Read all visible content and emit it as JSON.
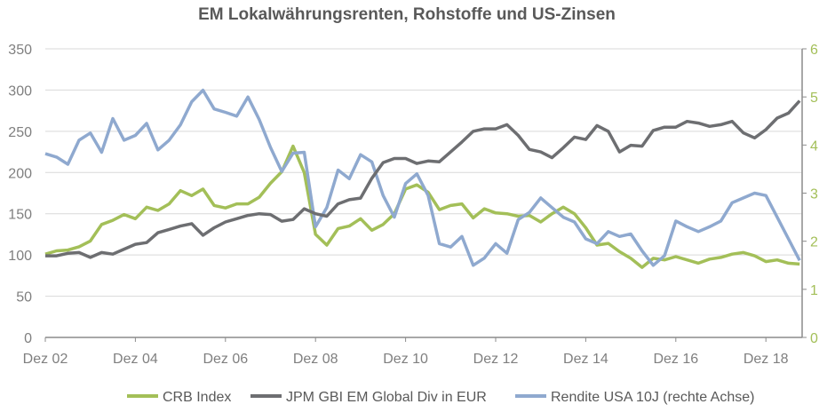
{
  "chart_data": {
    "type": "line",
    "title": "EM Lokalwährungsrenten, Rohstoffe und US-Zinsen",
    "xlabel": "",
    "ylabel": "",
    "ylim": [
      0,
      350
    ],
    "y2lim": [
      0,
      6
    ],
    "yticks": [
      "0",
      "50",
      "100",
      "150",
      "200",
      "250",
      "300",
      "350"
    ],
    "y2ticks": [
      "0",
      "1",
      "2",
      "3",
      "4",
      "5",
      "6"
    ],
    "xticks": [
      {
        "label": "Dez 02",
        "date": "2002-12"
      },
      {
        "label": "Dez 04",
        "date": "2004-12"
      },
      {
        "label": "Dez 06",
        "date": "2006-12"
      },
      {
        "label": "Dez 08",
        "date": "2008-12"
      },
      {
        "label": "Dez 10",
        "date": "2010-12"
      },
      {
        "label": "Dez 12",
        "date": "2012-12"
      },
      {
        "label": "Dez 14",
        "date": "2014-12"
      },
      {
        "label": "Dez 16",
        "date": "2016-12"
      },
      {
        "label": "Dez 18",
        "date": "2018-12"
      }
    ],
    "grid": true,
    "legend_position": "bottom",
    "x": [
      "2002-12",
      "2003-03",
      "2003-06",
      "2003-09",
      "2003-12",
      "2004-03",
      "2004-06",
      "2004-09",
      "2004-12",
      "2005-03",
      "2005-06",
      "2005-09",
      "2005-12",
      "2006-03",
      "2006-06",
      "2006-09",
      "2006-12",
      "2007-03",
      "2007-06",
      "2007-09",
      "2007-12",
      "2008-03",
      "2008-06",
      "2008-09",
      "2008-12",
      "2009-03",
      "2009-06",
      "2009-09",
      "2009-12",
      "2010-03",
      "2010-06",
      "2010-09",
      "2010-12",
      "2011-03",
      "2011-06",
      "2011-09",
      "2011-12",
      "2012-03",
      "2012-06",
      "2012-09",
      "2012-12",
      "2013-03",
      "2013-06",
      "2013-09",
      "2013-12",
      "2014-03",
      "2014-06",
      "2014-09",
      "2014-12",
      "2015-03",
      "2015-06",
      "2015-09",
      "2015-12",
      "2016-03",
      "2016-06",
      "2016-09",
      "2016-12",
      "2017-03",
      "2017-06",
      "2017-09",
      "2017-12",
      "2018-03",
      "2018-06",
      "2018-09",
      "2018-12",
      "2019-03",
      "2019-06",
      "2019-09"
    ],
    "series": [
      {
        "name": "CRB Index",
        "axis": "left",
        "color": "#a3bf58",
        "values": [
          101,
          105,
          106,
          110,
          117,
          137,
          142,
          149,
          144,
          158,
          154,
          162,
          178,
          172,
          180,
          160,
          157,
          162,
          162,
          170,
          187,
          201,
          232,
          200,
          125,
          112,
          132,
          135,
          144,
          130,
          137,
          150,
          180,
          185,
          176,
          155,
          160,
          162,
          145,
          156,
          151,
          150,
          147,
          148,
          140,
          150,
          158,
          150,
          133,
          112,
          114,
          104,
          96,
          85,
          96,
          94,
          98,
          94,
          90,
          95,
          97,
          101,
          103,
          99,
          92,
          94,
          90,
          89
        ]
      },
      {
        "name": "JPM GBI EM Global Div in EUR",
        "axis": "left",
        "color": "#6d6e71",
        "values": [
          99,
          99,
          102,
          103,
          97,
          103,
          101,
          107,
          113,
          115,
          127,
          131,
          135,
          138,
          124,
          133,
          140,
          144,
          148,
          150,
          149,
          141,
          143,
          156,
          150,
          147,
          162,
          167,
          169,
          193,
          212,
          217,
          217,
          211,
          214,
          213,
          225,
          237,
          250,
          253,
          253,
          258,
          245,
          228,
          225,
          218,
          230,
          243,
          240,
          257,
          250,
          225,
          233,
          232,
          251,
          255,
          255,
          262,
          260,
          256,
          258,
          262,
          248,
          242,
          252,
          266,
          272,
          287
        ]
      },
      {
        "name": "Rendite USA 10J (rechte Achse)",
        "axis": "right",
        "color": "#8fa9cf",
        "values": [
          3.82,
          3.75,
          3.6,
          4.1,
          4.25,
          3.85,
          4.55,
          4.1,
          4.2,
          4.45,
          3.9,
          4.1,
          4.42,
          4.9,
          5.14,
          4.75,
          4.68,
          4.6,
          5.0,
          4.53,
          3.95,
          3.45,
          3.83,
          3.85,
          2.3,
          2.7,
          3.48,
          3.3,
          3.8,
          3.65,
          2.95,
          2.5,
          3.2,
          3.4,
          2.95,
          1.95,
          1.88,
          2.1,
          1.5,
          1.65,
          1.95,
          1.75,
          2.45,
          2.6,
          2.9,
          2.7,
          2.5,
          2.4,
          2.05,
          1.95,
          2.2,
          2.1,
          2.15,
          1.8,
          1.5,
          1.7,
          2.42,
          2.3,
          2.2,
          2.3,
          2.42,
          2.8,
          2.9,
          3.0,
          2.95,
          2.5,
          2.05,
          1.6
        ]
      }
    ]
  },
  "colors": {
    "title": "#595959",
    "axis_text": "#7f7f7f",
    "right_axis_text": "#a3bf58",
    "grid": "#d9d9d9",
    "axis_line": "#8c8c8c"
  }
}
